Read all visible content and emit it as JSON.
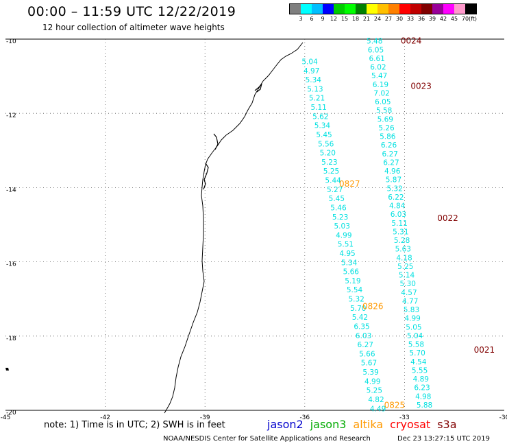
{
  "title": "00:00 – 11:59 UTC 12/22/2019",
  "subtitle": "12 hour collection of altimeter wave heights",
  "legend": {
    "colors": [
      "#7f7f7f",
      "#00ffff",
      "#00bfff",
      "#0000ff",
      "#00cc00",
      "#00ff00",
      "#008000",
      "#ffff00",
      "#ffc000",
      "#ff8000",
      "#ff0000",
      "#c00000",
      "#800000",
      "#990099",
      "#ff00ff",
      "#ff99cc",
      "#000000"
    ],
    "labels": [
      "3",
      "6",
      "9",
      "12",
      "15",
      "18",
      "21",
      "24",
      "27",
      "30",
      "33",
      "36",
      "39",
      "42",
      "45",
      "70",
      "(ft)"
    ]
  },
  "axes": {
    "lon_ticks": [
      "-45",
      "-42",
      "-39",
      "-36",
      "-33",
      "-30"
    ],
    "lat_ticks": [
      "-10",
      "-12",
      "-14",
      "-16",
      "-18",
      "-20"
    ]
  },
  "tracks": [
    {
      "lon0": -33.9,
      "lat0": -10.05,
      "lon1": -32.4,
      "lat1": -19.85,
      "values": [
        "5.48",
        "6.05",
        "6.61",
        "6.02",
        "5.47",
        "6.19",
        "7.02",
        "6.05",
        "5.58",
        "5.69",
        "5.26",
        "5.86",
        "6.26",
        "6.27",
        "6.27",
        "4.96",
        "5.87",
        "5.32",
        "6.22",
        "4.84",
        "6.03",
        "5.11",
        "5.31",
        "5.28",
        "5.63",
        "4.18",
        "5.25",
        "5.14",
        "5.30",
        "4.57",
        "4.77",
        "5.83",
        "4.99",
        "5.05",
        "5.04",
        "5.58",
        "5.70",
        "4.54",
        "5.55",
        "4.89",
        "6.23",
        "4.98",
        "5.88"
      ]
    },
    {
      "lon0": -35.85,
      "lat0": -10.6,
      "lon1": -33.8,
      "lat1": -19.95,
      "values": [
        "5.04",
        "4.97",
        "5.34",
        "5.13",
        "5.21",
        "5.11",
        "5.62",
        "5.34",
        "5.45",
        "5.56",
        "5.20",
        "5.23",
        "5.25",
        "5.44",
        "5.27",
        "5.45",
        "5.46",
        "5.23",
        "5.03",
        "4.99",
        "5.51",
        "4.95",
        "5.34",
        "5.66",
        "5.19",
        "5.54",
        "5.32",
        "5.70",
        "5.42",
        "6.35",
        "6.03",
        "6.27",
        "5.66",
        "5.67",
        "5.39",
        "4.99",
        "5.25",
        "4.82",
        "4.49"
      ]
    }
  ],
  "passes": [
    {
      "label": "0024",
      "lon": -32.8,
      "lat": -10.05,
      "color": "#800000"
    },
    {
      "label": "0023",
      "lon": -32.5,
      "lat": -11.27,
      "color": "#800000"
    },
    {
      "label": "0827",
      "lon": -34.65,
      "lat": -13.9,
      "color": "#ff9900"
    },
    {
      "lon": -31.7,
      "lat": -14.82,
      "label": "0022",
      "color": "#800000"
    },
    {
      "label": "0826",
      "lon": -33.95,
      "lat": -17.2,
      "color": "#ff9900"
    },
    {
      "label": "0021",
      "lon": -30.6,
      "lat": -18.37,
      "color": "#800000"
    },
    {
      "label": "0825",
      "lon": -33.3,
      "lat": -19.86,
      "color": "#ff9900"
    }
  ],
  "note": "note: 1) Time is in UTC; 2) SWH is in feet",
  "missions": [
    {
      "name": "jason2",
      "color": "#0000cc"
    },
    {
      "name": "jason3",
      "color": "#00aa00"
    },
    {
      "name": "altika",
      "color": "#ff9900"
    },
    {
      "name": "cryosat",
      "color": "#ff0000"
    },
    {
      "name": "s3a",
      "color": "#800000"
    }
  ],
  "footer": "NOAA/NESDIS Center for Satellite Applications and Research",
  "timestamp": "Dec 23 13:27:15 UTC 2019"
}
